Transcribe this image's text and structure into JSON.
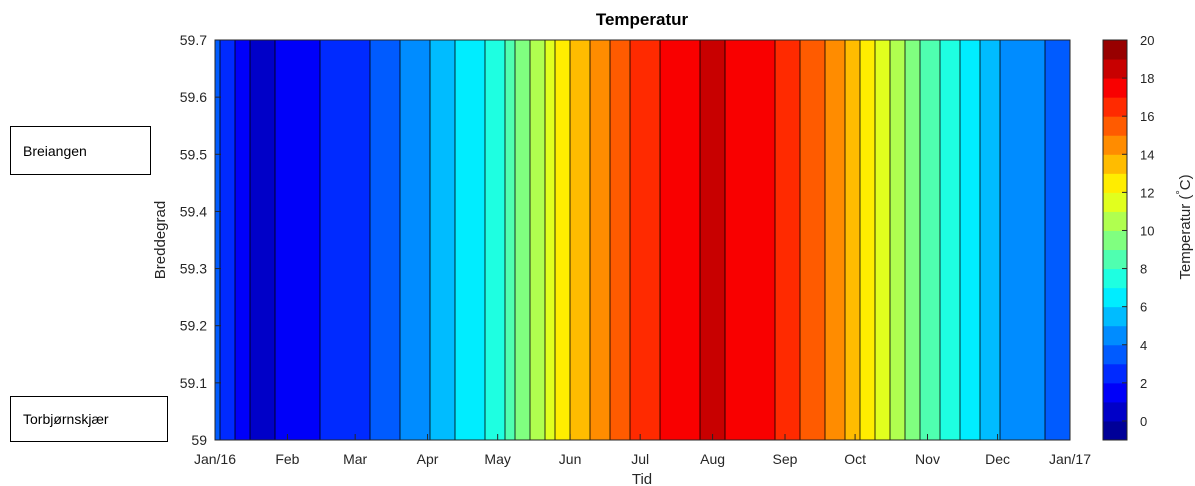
{
  "chart_data": {
    "type": "heatmap",
    "title": "Temperatur",
    "xlabel": "Tid",
    "ylabel": "Breddegrad",
    "colorbar_label": "Temperatur (°C)",
    "colorbar_label_parts": {
      "prefix": "Temperatur (",
      "degree": "°",
      "suffix": "C)"
    },
    "x_tick_labels": [
      "Jan/16",
      "Feb",
      "Mar",
      "Apr",
      "May",
      "Jun",
      "Jul",
      "Aug",
      "Sep",
      "Oct",
      "Nov",
      "Dec",
      "Jan/17"
    ],
    "ylim": [
      59.0,
      59.7
    ],
    "y_ticks": [
      "59",
      "59.1",
      "59.2",
      "59.3",
      "59.4",
      "59.5",
      "59.6",
      "59.7"
    ],
    "clim": [
      -1,
      20
    ],
    "colorbar_ticks": [
      "0",
      "2",
      "4",
      "6",
      "8",
      "10",
      "12",
      "14",
      "16",
      "18",
      "20"
    ],
    "colormap": "jet",
    "level_step": 1,
    "temperature_by_month_start": [
      {
        "date": "2016-01-01",
        "temp": 4.0
      },
      {
        "date": "2016-01-05",
        "temp": 2.5
      },
      {
        "date": "2016-01-20",
        "temp": 0.5
      },
      {
        "date": "2016-02-01",
        "temp": 1.5
      },
      {
        "date": "2016-03-01",
        "temp": 2.5
      },
      {
        "date": "2016-04-01",
        "temp": 5.0
      },
      {
        "date": "2016-05-01",
        "temp": 7.5
      },
      {
        "date": "2016-06-01",
        "temp": 13.0
      },
      {
        "date": "2016-07-01",
        "temp": 16.5
      },
      {
        "date": "2016-08-01",
        "temp": 18.3
      },
      {
        "date": "2016-09-01",
        "temp": 16.8
      },
      {
        "date": "2016-10-01",
        "temp": 13.5
      },
      {
        "date": "2016-11-01",
        "temp": 8.5
      },
      {
        "date": "2016-12-01",
        "temp": 5.0
      },
      {
        "date": "2017-01-01",
        "temp": 3.5
      }
    ],
    "grid": false,
    "colors": {
      "background": "#ffffff",
      "axis": "#262626",
      "contour_line": "#000000"
    }
  },
  "annotations": {
    "top_label": "Breiangen",
    "bottom_label": "Torbjørnskjær"
  }
}
